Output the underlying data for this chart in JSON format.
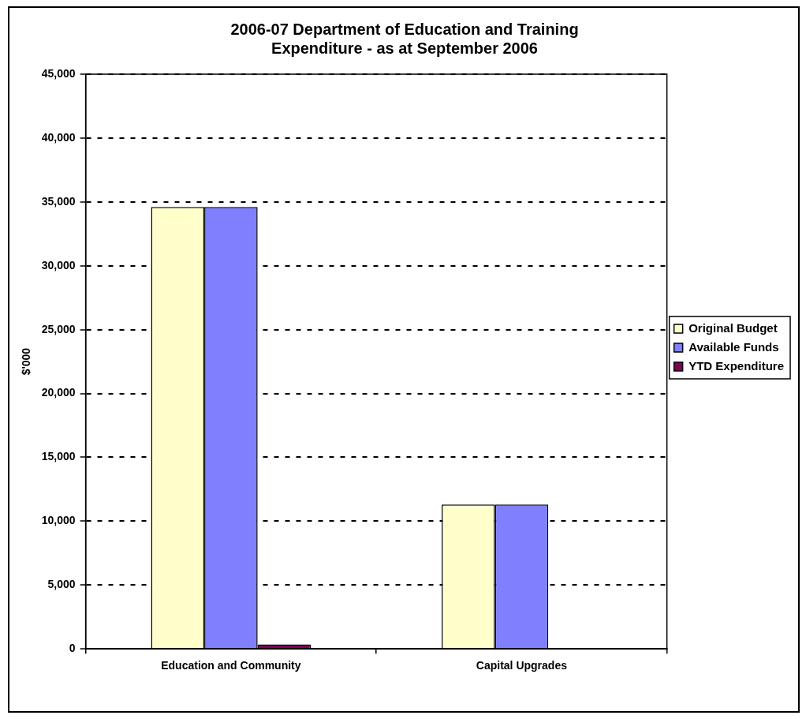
{
  "chart_data": {
    "type": "bar",
    "title": [
      "2006-07 Department of Education and Training",
      "Expenditure - as at September 2006"
    ],
    "ylabel": "$'000",
    "categories": [
      "Education and Community",
      "Capital Upgrades"
    ],
    "series": [
      {
        "name": "Original Budget",
        "color": "#ffffcc",
        "values": [
          34600,
          11300
        ]
      },
      {
        "name": "Available Funds",
        "color": "#8080ff",
        "values": [
          34600,
          11300
        ]
      },
      {
        "name": "YTD Expenditure",
        "color": "#800055",
        "values": [
          350,
          null
        ]
      }
    ],
    "ylim": [
      0,
      45000
    ],
    "yticks": [
      0,
      {
        "value": 5000,
        "label": "5,000"
      },
      {
        "value": 10000,
        "label": "10,000"
      },
      {
        "value": 15000,
        "label": "15,000"
      },
      {
        "value": 20000,
        "label": "20,000"
      },
      {
        "value": 25000,
        "label": "25,000"
      },
      {
        "value": 30000,
        "label": "30,000"
      },
      {
        "value": 35000,
        "label": "35,000"
      },
      {
        "value": 40000,
        "label": "40,000"
      },
      {
        "value": 45000,
        "label": "45,000"
      }
    ],
    "grid": "y",
    "legend": "right"
  }
}
